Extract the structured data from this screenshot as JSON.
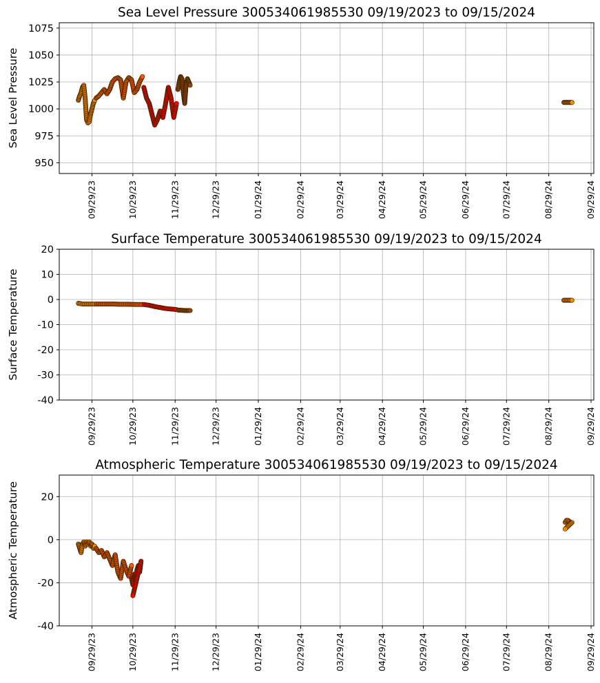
{
  "chart_data": [
    {
      "type": "scatter",
      "title": "Sea Level Pressure 300534061985530  09/19/2023 to 09/15/2024",
      "ylabel": "Sea Level Pressure",
      "xlabel": "",
      "ylim": [
        940,
        1080
      ],
      "yticks": [
        950,
        975,
        1000,
        1025,
        1050,
        1075
      ],
      "xlim": [
        "2023-09-05",
        "2024-10-01"
      ],
      "xticks": [
        "09/29/23",
        "10/29/23",
        "11/29/23",
        "12/29/23",
        "01/29/24",
        "02/29/24",
        "03/29/24",
        "04/29/24",
        "05/29/24",
        "06/29/24",
        "07/29/24",
        "08/29/24",
        "09/29/24"
      ],
      "grid": true,
      "series": [
        {
          "color": "#ff8c00",
          "x": [
            "2023-09-19",
            "2023-09-20",
            "2023-09-21",
            "2023-09-22",
            "2023-09-23",
            "2023-09-24",
            "2023-09-25",
            "2023-09-26",
            "2023-09-27",
            "2023-09-28",
            "2023-09-29",
            "2023-09-30",
            "2023-10-01"
          ],
          "y": [
            1008,
            1012,
            1015,
            1020,
            1022,
            1010,
            990,
            987,
            988,
            995,
            1000,
            1005,
            1008
          ]
        },
        {
          "color": "#ff5a00",
          "x": [
            "2023-10-02",
            "2023-10-04",
            "2023-10-06",
            "2023-10-08",
            "2023-10-10",
            "2023-10-12",
            "2023-10-14",
            "2023-10-16",
            "2023-10-18",
            "2023-10-20",
            "2023-10-22",
            "2023-10-24",
            "2023-10-26",
            "2023-10-28",
            "2023-10-30",
            "2023-11-01",
            "2023-11-03",
            "2023-11-05"
          ],
          "y": [
            1010,
            1012,
            1015,
            1018,
            1014,
            1018,
            1025,
            1028,
            1029,
            1027,
            1010,
            1025,
            1029,
            1027,
            1015,
            1018,
            1025,
            1030
          ]
        },
        {
          "color": "#ff0000",
          "x": [
            "2023-11-06",
            "2023-11-08",
            "2023-11-10",
            "2023-11-12",
            "2023-11-14",
            "2023-11-16",
            "2023-11-18",
            "2023-11-20",
            "2023-11-22",
            "2023-11-24",
            "2023-11-26",
            "2023-11-28",
            "2023-11-30"
          ],
          "y": [
            1020,
            1010,
            1005,
            995,
            985,
            990,
            998,
            992,
            1005,
            1020,
            1010,
            992,
            1005
          ]
        },
        {
          "color": "#8b4513",
          "x": [
            "2023-12-01",
            "2023-12-02",
            "2023-12-03",
            "2023-12-04",
            "2023-12-05",
            "2023-12-06",
            "2023-12-07",
            "2023-12-08",
            "2023-12-09",
            "2023-12-10"
          ],
          "y": [
            1018,
            1025,
            1030,
            1028,
            1015,
            1005,
            1022,
            1028,
            1025,
            1022
          ]
        },
        {
          "color": "#ff8c00",
          "x": [
            "2024-09-09",
            "2024-09-10",
            "2024-09-11",
            "2024-09-12",
            "2024-09-13",
            "2024-09-14",
            "2024-09-15"
          ],
          "y": [
            1006,
            1006,
            1006,
            1006,
            1006,
            1006,
            1006
          ]
        }
      ]
    },
    {
      "type": "scatter",
      "title": "Surface Temperature 300534061985530  09/19/2023 to 09/15/2024",
      "ylabel": "Surface Temperature",
      "xlabel": "",
      "ylim": [
        -40,
        20
      ],
      "yticks": [
        -40,
        -30,
        -20,
        -10,
        0,
        10,
        20
      ],
      "xlim": [
        "2023-09-05",
        "2024-10-01"
      ],
      "xticks": [
        "09/29/23",
        "10/29/23",
        "11/29/23",
        "12/29/23",
        "01/29/24",
        "02/29/24",
        "03/29/24",
        "04/29/24",
        "05/29/24",
        "06/29/24",
        "07/29/24",
        "08/29/24",
        "09/29/24"
      ],
      "grid": true,
      "series": [
        {
          "color": "#ff8c00",
          "x": [
            "2023-09-19",
            "2023-09-22",
            "2023-09-25",
            "2023-09-28",
            "2023-10-01"
          ],
          "y": [
            -1.5,
            -1.8,
            -1.8,
            -1.8,
            -1.8
          ]
        },
        {
          "color": "#ff5a00",
          "x": [
            "2023-10-02",
            "2023-10-08",
            "2023-10-14",
            "2023-10-20",
            "2023-10-26",
            "2023-11-01",
            "2023-11-05"
          ],
          "y": [
            -1.8,
            -1.8,
            -1.8,
            -1.9,
            -1.9,
            -2.0,
            -2.0
          ]
        },
        {
          "color": "#ff0000",
          "x": [
            "2023-11-06",
            "2023-11-10",
            "2023-11-14",
            "2023-11-18",
            "2023-11-22",
            "2023-11-26",
            "2023-11-30"
          ],
          "y": [
            -2.0,
            -2.3,
            -2.8,
            -3.2,
            -3.6,
            -3.8,
            -4.0
          ]
        },
        {
          "color": "#8b4513",
          "x": [
            "2023-12-01",
            "2023-12-04",
            "2023-12-07",
            "2023-12-10"
          ],
          "y": [
            -4.2,
            -4.3,
            -4.4,
            -4.4
          ]
        },
        {
          "color": "#ff8c00",
          "x": [
            "2024-09-09",
            "2024-09-11",
            "2024-09-13",
            "2024-09-15"
          ],
          "y": [
            -0.3,
            -0.3,
            -0.3,
            -0.3
          ]
        }
      ]
    },
    {
      "type": "scatter",
      "title": "Atmospheric Temperature 300534061985530  09/19/2023 to 09/15/2024",
      "ylabel": "Atmospheric Temperature",
      "xlabel": "",
      "ylim": [
        -40,
        30
      ],
      "yticks": [
        -40,
        -20,
        0,
        20
      ],
      "xlim": [
        "2023-09-05",
        "2024-10-01"
      ],
      "xticks": [
        "09/29/23",
        "10/29/23",
        "11/29/23",
        "12/29/23",
        "01/29/24",
        "02/29/24",
        "03/29/24",
        "04/29/24",
        "05/29/24",
        "06/29/24",
        "07/29/24",
        "08/29/24",
        "09/29/24"
      ],
      "grid": true,
      "series": [
        {
          "color": "#ff8c00",
          "x": [
            "2023-09-19",
            "2023-09-20",
            "2023-09-21",
            "2023-09-22",
            "2023-09-23",
            "2023-09-24",
            "2023-09-25",
            "2023-09-26",
            "2023-09-27",
            "2023-09-28",
            "2023-09-29",
            "2023-09-30",
            "2023-10-01"
          ],
          "y": [
            -2,
            -4,
            -6,
            -2,
            -1,
            -3,
            -1,
            -2,
            -1,
            -3,
            -2,
            -4,
            -3
          ]
        },
        {
          "color": "#ff5a00",
          "x": [
            "2023-10-02",
            "2023-10-04",
            "2023-10-06",
            "2023-10-08",
            "2023-10-10",
            "2023-10-12",
            "2023-10-14",
            "2023-10-16",
            "2023-10-18",
            "2023-10-20",
            "2023-10-22",
            "2023-10-24",
            "2023-10-26",
            "2023-10-28"
          ],
          "y": [
            -4,
            -6,
            -5,
            -8,
            -6,
            -9,
            -12,
            -7,
            -15,
            -18,
            -10,
            -14,
            -17,
            -12
          ]
        },
        {
          "color": "#ff0000",
          "x": [
            "2023-10-28",
            "2023-10-29",
            "2023-10-30",
            "2023-10-31",
            "2023-11-01",
            "2023-11-02",
            "2023-11-03",
            "2023-11-04",
            "2023-10-29"
          ],
          "y": [
            -18,
            -21,
            -16,
            -19,
            -14,
            -12,
            -15,
            -10,
            -26
          ]
        },
        {
          "color": "#ff8c00",
          "x": [
            "2024-09-10",
            "2024-09-11",
            "2024-09-12",
            "2024-09-13",
            "2024-09-14",
            "2024-09-15",
            "2024-09-10"
          ],
          "y": [
            8,
            9,
            9,
            8.5,
            8,
            8,
            5
          ]
        }
      ]
    }
  ]
}
